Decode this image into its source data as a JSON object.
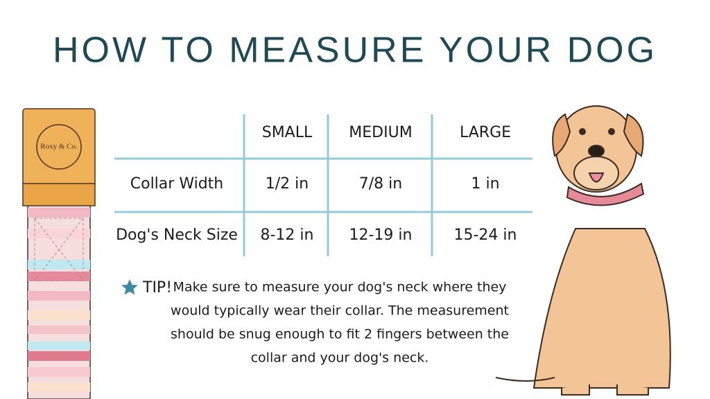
{
  "header": {
    "title": "HOW TO MEASURE YOUR DOG"
  },
  "collar": {
    "brand": "Roxy & Co."
  },
  "table": {
    "columns": [
      "SMALL",
      "MEDIUM",
      "LARGE"
    ],
    "rows": [
      [
        "Collar Width",
        "1/2 in",
        "7/8 in",
        "1 in"
      ],
      [
        "Dog's Neck Size",
        "8-12 in",
        "12-19 in",
        "15-24 in"
      ]
    ]
  },
  "tip": {
    "label": "TIP!",
    "lines": [
      "Make sure to measure your dog's neck where they",
      "would typically wear their collar. The measurement",
      "should be snug enough to fit 2 fingers between the",
      "collar and your dog's neck."
    ]
  }
}
